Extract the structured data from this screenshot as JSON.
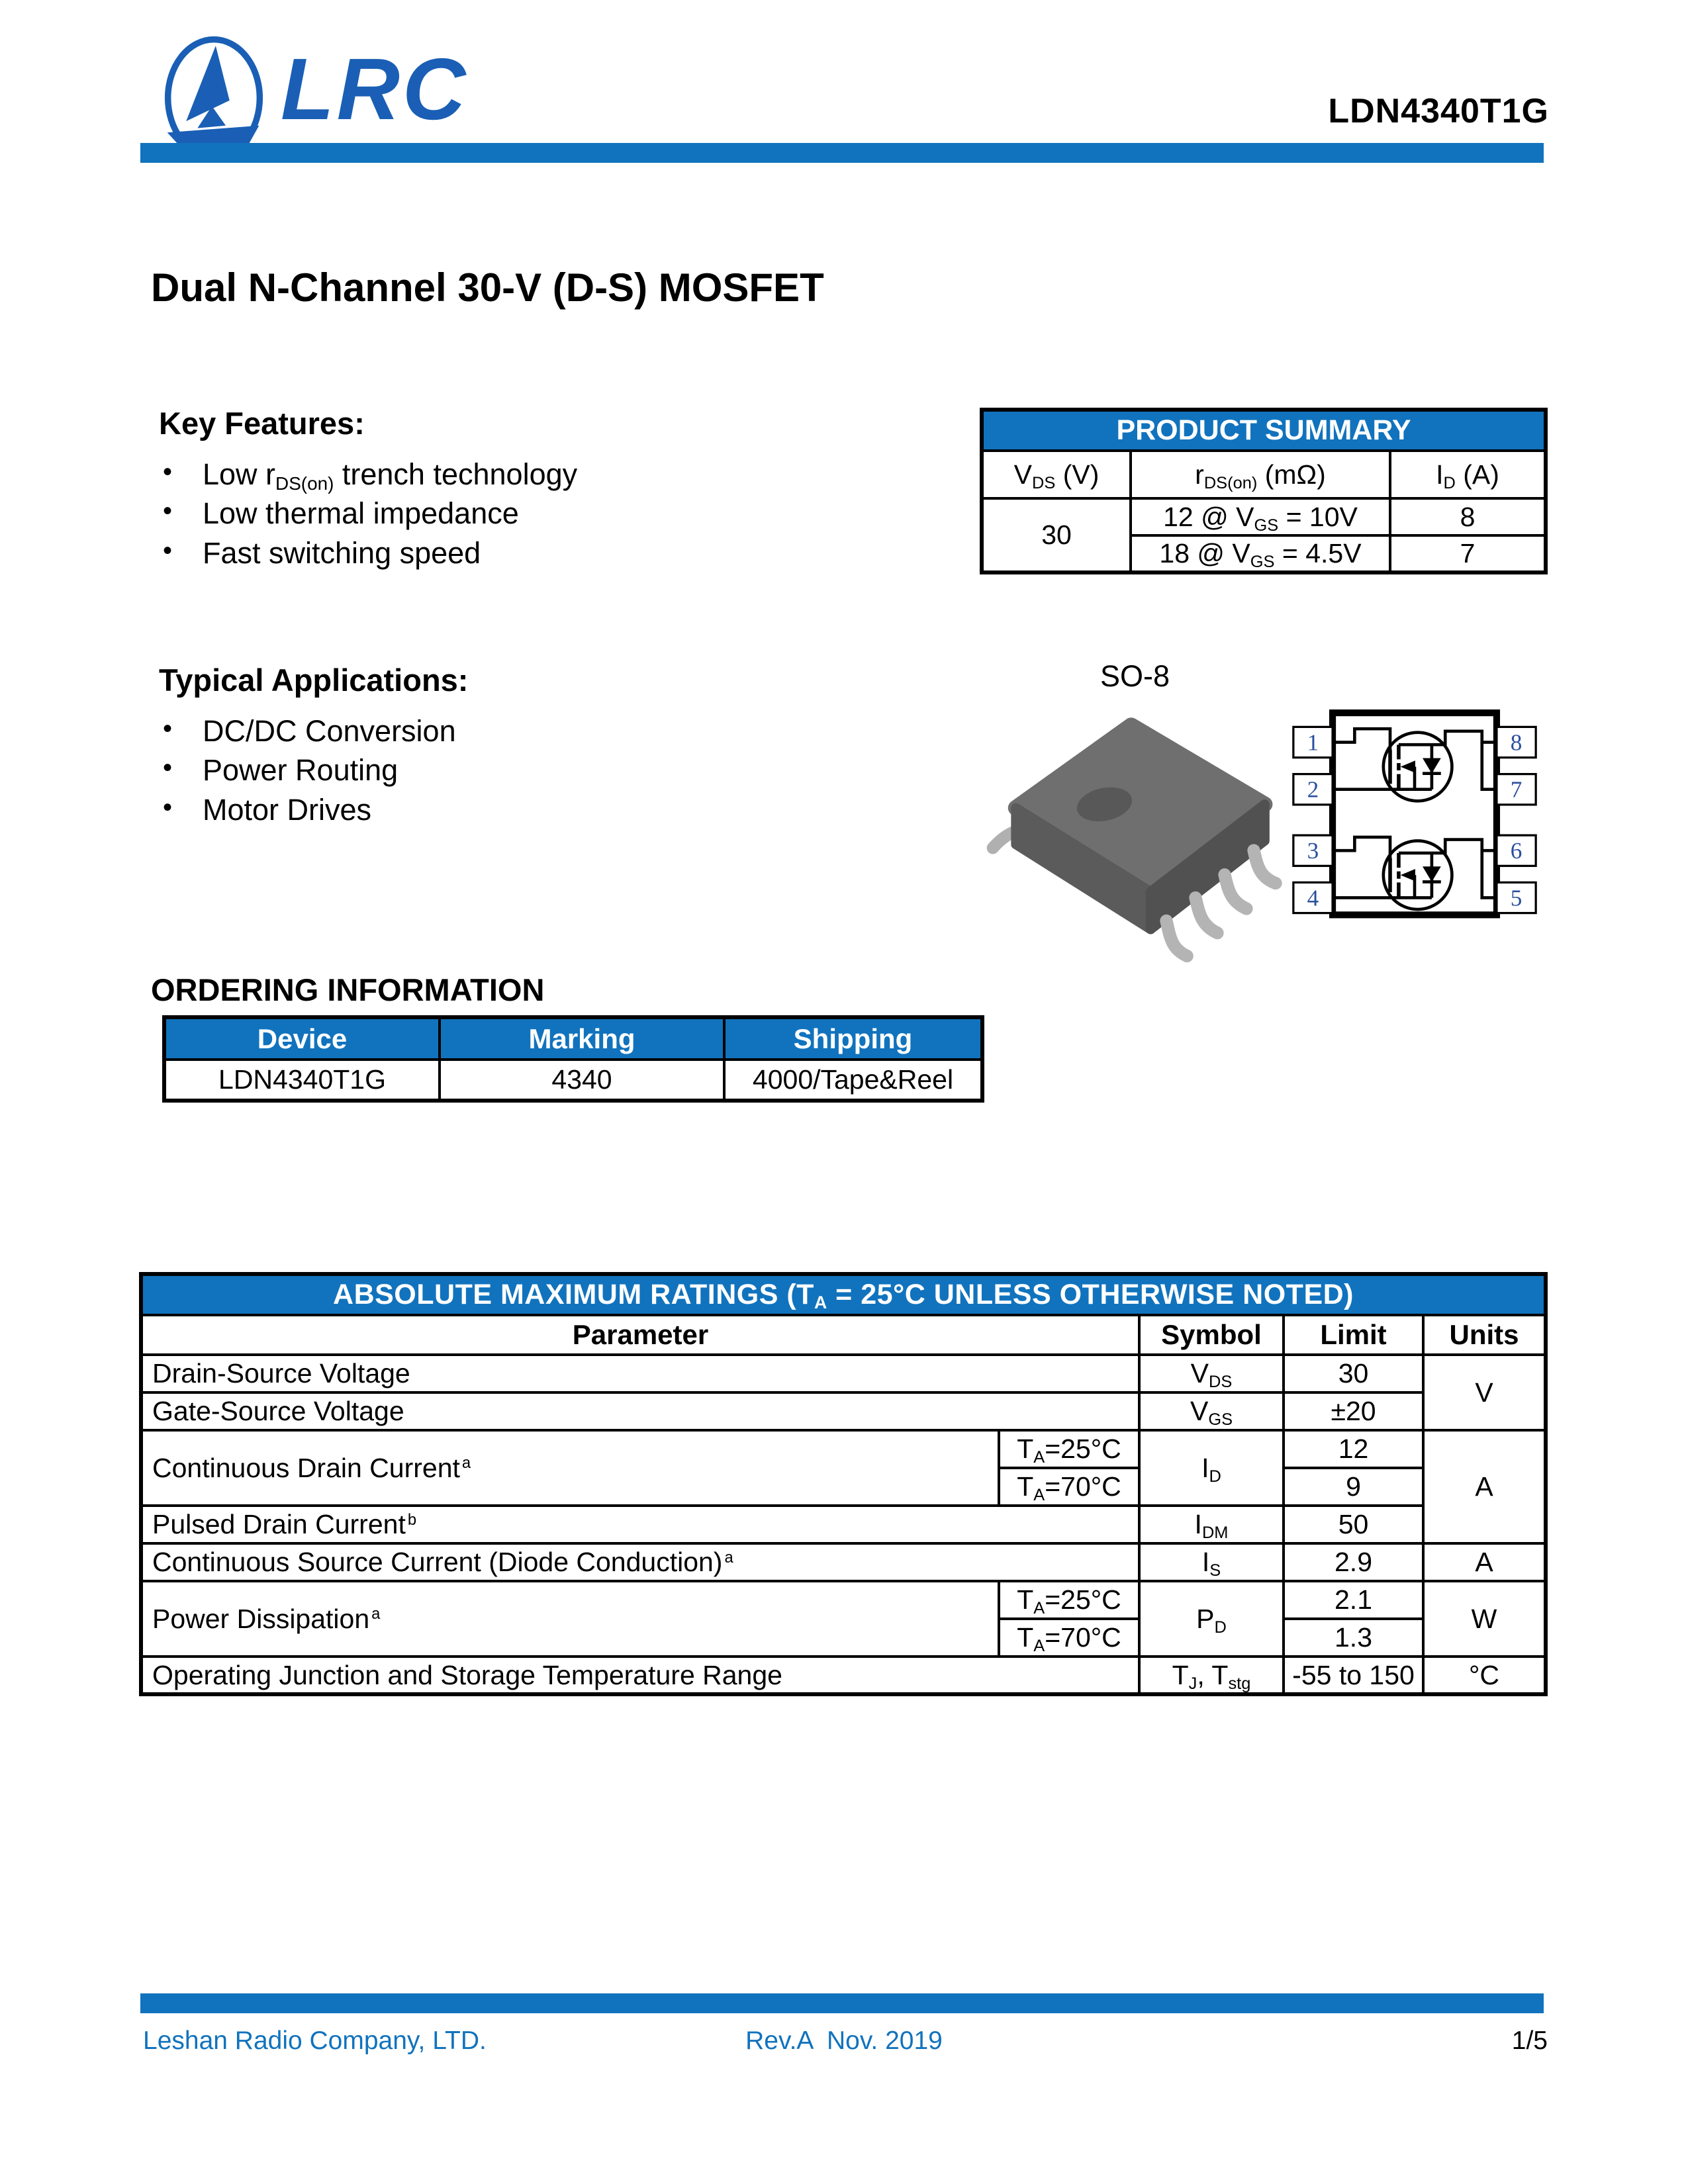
{
  "colors": {
    "accent": "#1173BD",
    "logo_blue": "#1A5FB5",
    "pin_blue": "#2B4F9E",
    "footer_blue": "#1173BD"
  },
  "header": {
    "logo_text": "LRC",
    "part_number": "LDN4340T1G"
  },
  "title": "Dual N-Channel 30-V (D-S) MOSFET",
  "key_features": {
    "heading": "Key Features:",
    "items": [
      "Low r_{DS(on)} trench technology",
      "Low thermal impedance",
      "Fast switching speed"
    ]
  },
  "product_summary": {
    "title": "PRODUCT SUMMARY",
    "headers": [
      "V_{DS} (V)",
      "r_{DS(on)} (mΩ)",
      "I_{D} (A)"
    ],
    "vds_value": "30",
    "rows": [
      {
        "rdson": "12 @ V_{GS} = 10V",
        "id": "8"
      },
      {
        "rdson": "18 @ V_{GS} = 4.5V",
        "id": "7"
      }
    ]
  },
  "applications": {
    "heading": "Typical Applications:",
    "items": [
      "DC/DC Conversion",
      "Power Routing",
      "Motor Drives"
    ]
  },
  "package": {
    "name": "SO-8",
    "pins_left": [
      "1",
      "2",
      "3",
      "4"
    ],
    "pins_right": [
      "8",
      "7",
      "6",
      "5"
    ]
  },
  "ordering": {
    "heading": "ORDERING INFORMATION",
    "headers": [
      "Device",
      "Marking",
      "Shipping"
    ],
    "row": [
      "LDN4340T1G",
      "4340",
      "4000/Tape&Reel"
    ]
  },
  "abs_max": {
    "title": "ABSOLUTE MAXIMUM RATINGS (T_{A} = 25°C UNLESS OTHERWISE NOTED)",
    "headers": [
      "Parameter",
      "Symbol",
      "Limit",
      "Units"
    ],
    "vds": {
      "param": "Drain-Source Voltage",
      "symbol": "V_{DS}",
      "limit": "30"
    },
    "vgs": {
      "param": "Gate-Source Voltage",
      "symbol": "V_{GS}",
      "limit": "±20"
    },
    "unit_v": "V",
    "idc": {
      "param": "Continuous Drain Current^{a}",
      "cond25": "T_{A}=25°C",
      "cond70": "T_{A}=70°C",
      "symbol": "I_{D}",
      "limit25": "12",
      "limit70": "9"
    },
    "idm": {
      "param": "Pulsed Drain Current^{b}",
      "symbol": "I_{DM}",
      "limit": "50"
    },
    "unit_a": "A",
    "is": {
      "param": "Continuous Source Current (Diode Conduction)^{a}",
      "symbol": "I_{S}",
      "limit": "2.9",
      "unit": "A"
    },
    "pd": {
      "param": "Power Dissipation^{a}",
      "cond25": "T_{A}=25°C",
      "cond70": "T_{A}=70°C",
      "symbol": "P_{D}",
      "limit25": "2.1",
      "limit70": "1.3",
      "unit": "W"
    },
    "tj": {
      "param": "Operating Junction and Storage Temperature Range",
      "symbol": "T_{J}, T_{stg}",
      "limit": "-55 to 150",
      "unit": "°C"
    }
  },
  "footer": {
    "company": "Leshan Radio Company, LTD.",
    "revision": "Rev.A  Nov. 2019",
    "page": "1/5"
  }
}
